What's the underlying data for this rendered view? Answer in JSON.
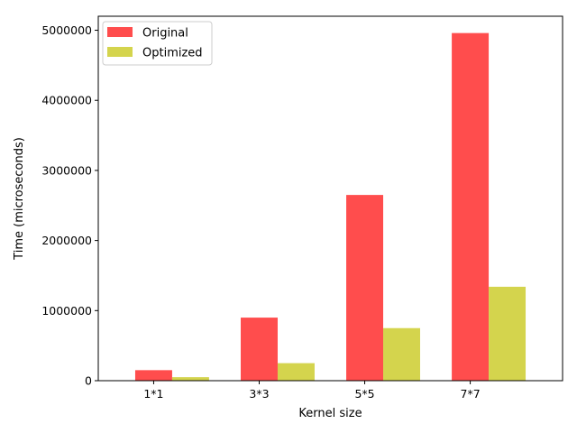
{
  "chart_data": {
    "type": "bar",
    "title": "",
    "xlabel": "Kernel size",
    "ylabel": "Time (microseconds)",
    "categories": [
      "1*1",
      "3*3",
      "5*5",
      "7*7"
    ],
    "series": [
      {
        "name": "Original",
        "color": "#ff4d4d",
        "values": [
          150000,
          900000,
          2650000,
          4960000
        ]
      },
      {
        "name": "Optimized",
        "color": "#d4d44d",
        "values": [
          50000,
          250000,
          750000,
          1340000
        ]
      }
    ],
    "ylim": [
      0,
      5200000
    ],
    "yticks": [
      "0",
      "1000000",
      "2000000",
      "3000000",
      "4000000",
      "5000000"
    ],
    "grid": false,
    "legend_position": "top-left"
  }
}
